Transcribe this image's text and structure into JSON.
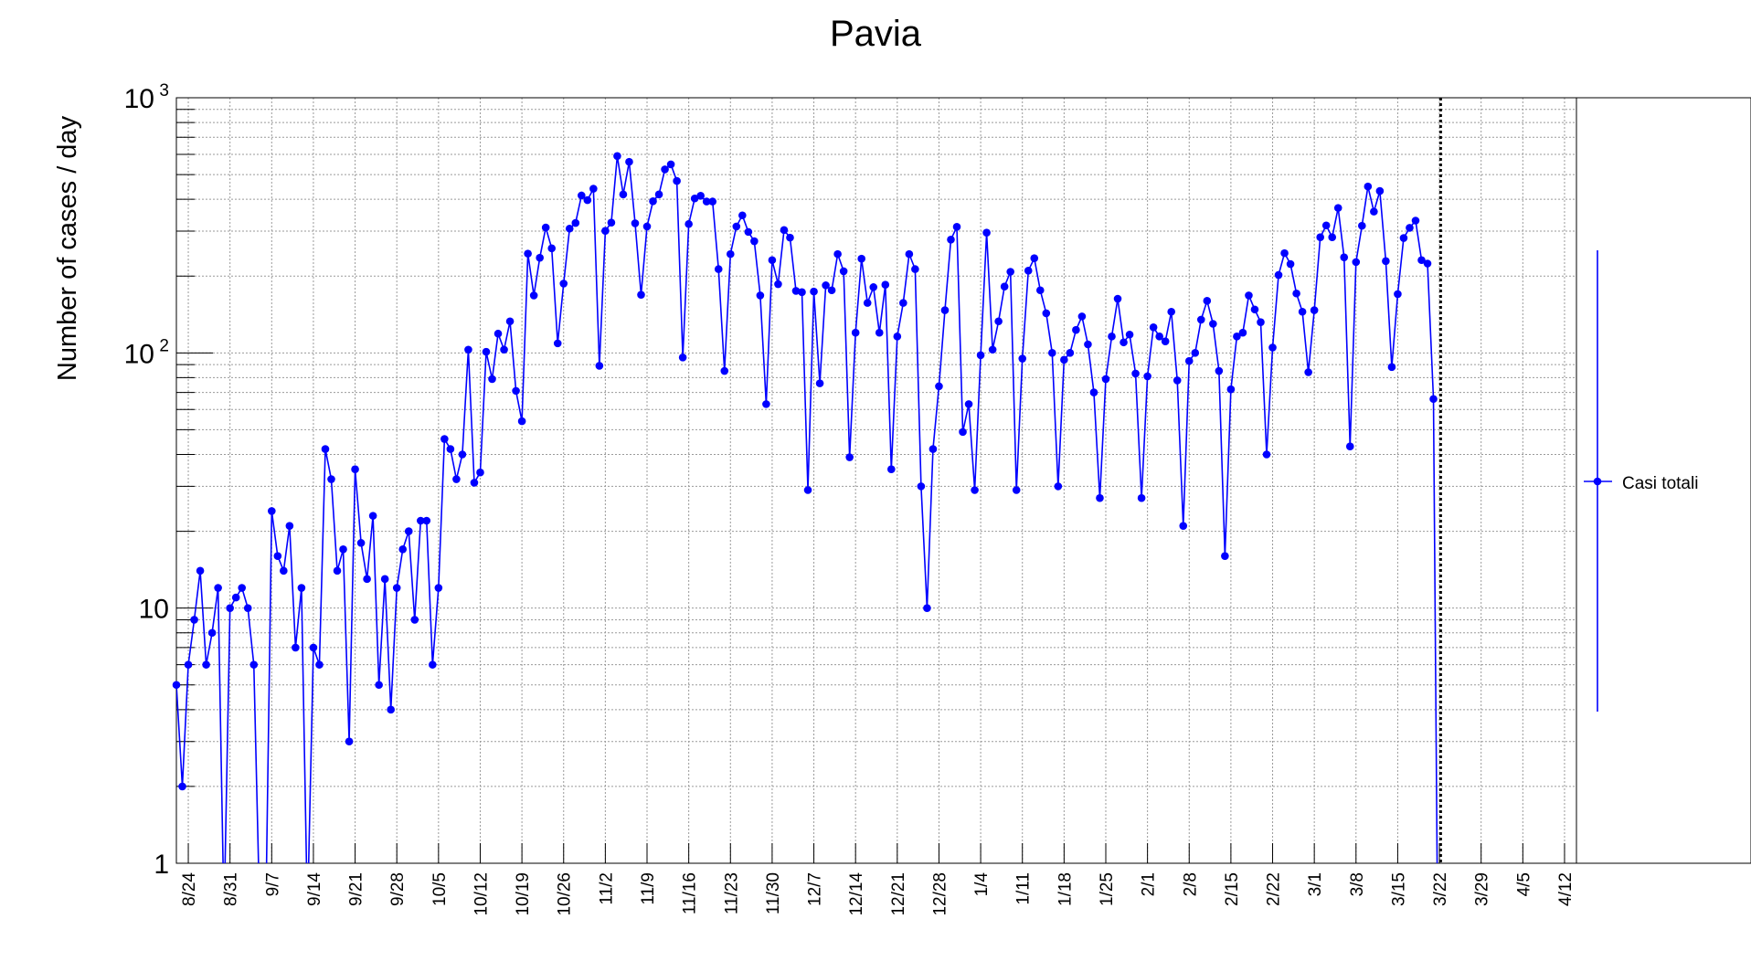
{
  "chart_data": {
    "type": "line",
    "title": "Pavia",
    "xlabel": "",
    "ylabel": "Number of cases / day",
    "yscale": "log",
    "ylim": [
      1,
      1000
    ],
    "y_ticks": [
      {
        "value": 1,
        "label": "1"
      },
      {
        "value": 10,
        "label": "10"
      },
      {
        "value": 100,
        "label": "10",
        "exp": "2"
      },
      {
        "value": 1000,
        "label": "10",
        "exp": "3"
      }
    ],
    "x_range_days": [
      0,
      235
    ],
    "x_ticks": [
      {
        "day": 2,
        "label": "8/24"
      },
      {
        "day": 9,
        "label": "8/31"
      },
      {
        "day": 16,
        "label": "9/7"
      },
      {
        "day": 23,
        "label": "9/14"
      },
      {
        "day": 30,
        "label": "9/21"
      },
      {
        "day": 37,
        "label": "9/28"
      },
      {
        "day": 44,
        "label": "10/5"
      },
      {
        "day": 51,
        "label": "10/12"
      },
      {
        "day": 58,
        "label": "10/19"
      },
      {
        "day": 65,
        "label": "10/26"
      },
      {
        "day": 72,
        "label": "11/2"
      },
      {
        "day": 79,
        "label": "11/9"
      },
      {
        "day": 86,
        "label": "11/16"
      },
      {
        "day": 93,
        "label": "11/23"
      },
      {
        "day": 100,
        "label": "11/30"
      },
      {
        "day": 107,
        "label": "12/7"
      },
      {
        "day": 114,
        "label": "12/14"
      },
      {
        "day": 121,
        "label": "12/21"
      },
      {
        "day": 128,
        "label": "12/28"
      },
      {
        "day": 135,
        "label": "1/4"
      },
      {
        "day": 142,
        "label": "1/11"
      },
      {
        "day": 149,
        "label": "1/18"
      },
      {
        "day": 156,
        "label": "1/25"
      },
      {
        "day": 163,
        "label": "2/1"
      },
      {
        "day": 170,
        "label": "2/8"
      },
      {
        "day": 177,
        "label": "2/15"
      },
      {
        "day": 184,
        "label": "2/22"
      },
      {
        "day": 191,
        "label": "3/1"
      },
      {
        "day": 198,
        "label": "3/8"
      },
      {
        "day": 205,
        "label": "3/15"
      },
      {
        "day": 212,
        "label": "3/22"
      },
      {
        "day": 219,
        "label": "3/29"
      },
      {
        "day": 226,
        "label": "4/5"
      },
      {
        "day": 233,
        "label": "4/12"
      }
    ],
    "marker_line_day": 212.2,
    "series": [
      {
        "name": "Casi totali",
        "color": "#0000ff",
        "values": [
          5,
          2,
          6,
          9,
          14,
          6,
          8,
          12,
          0,
          10,
          11,
          12,
          10,
          6,
          0,
          0,
          24,
          16,
          14,
          21,
          7,
          12,
          0,
          7,
          6,
          42,
          32,
          14,
          17,
          3,
          35,
          18,
          13,
          23,
          5,
          13,
          4,
          12,
          17,
          20,
          9,
          22,
          22,
          6,
          12,
          46,
          42,
          32,
          40,
          103,
          31,
          34,
          101,
          79,
          119,
          103,
          133,
          71,
          54,
          245,
          168,
          236,
          310,
          257,
          109,
          187,
          307,
          323,
          414,
          397,
          440,
          89,
          301,
          324,
          591,
          418,
          561,
          322,
          169,
          313,
          393,
          418,
          524,
          548,
          472,
          96,
          320,
          403,
          413,
          392,
          392,
          213,
          85,
          244,
          313,
          346,
          298,
          274,
          168,
          63,
          231,
          186,
          303,
          283,
          175,
          173,
          29,
          174,
          76,
          184,
          176,
          244,
          209,
          39,
          120,
          234,
          157,
          181,
          120,
          185,
          35,
          116,
          157,
          244,
          213,
          30,
          10,
          42,
          74,
          147,
          278,
          312,
          49,
          63,
          29,
          98,
          296,
          103,
          133,
          182,
          208,
          29,
          95,
          210,
          235,
          176,
          143,
          100,
          30,
          94,
          100,
          123,
          139,
          108,
          70,
          27,
          79,
          116,
          163,
          110,
          118,
          83,
          27,
          81,
          126,
          116,
          111,
          145,
          78,
          21,
          93,
          100,
          135,
          160,
          130,
          85,
          16,
          72,
          116,
          120,
          168,
          148,
          132,
          40,
          105,
          202,
          246,
          223,
          171,
          145,
          84,
          147,
          284,
          316,
          284,
          370,
          237,
          43,
          227,
          315,
          449,
          358,
          431,
          229,
          88,
          170,
          282,
          309,
          330,
          231,
          224,
          66
        ]
      }
    ]
  }
}
